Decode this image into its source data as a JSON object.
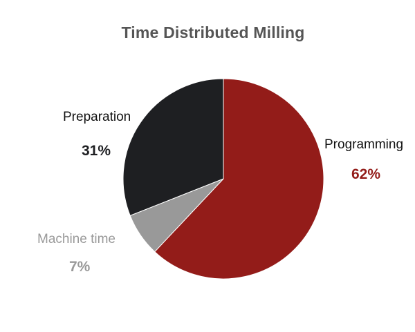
{
  "chart_data": {
    "type": "pie",
    "title": "Time Distributed Milling",
    "slices": [
      {
        "label": "Programming",
        "value": 62,
        "value_label": "62%",
        "color": "#931c19",
        "label_color": "#111111"
      },
      {
        "label": "Machine time",
        "value": 7,
        "value_label": "7%",
        "color": "#999999",
        "label_color": "#999999"
      },
      {
        "label": "Preparation",
        "value": 31,
        "value_label": "31%",
        "color": "#1e1f22",
        "label_color": "#111111"
      }
    ]
  }
}
